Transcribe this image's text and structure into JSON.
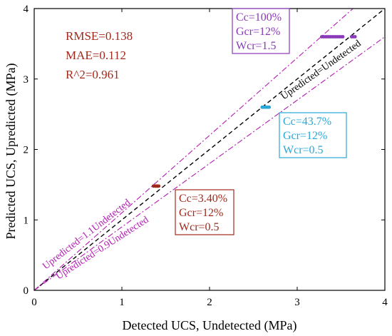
{
  "chart_data": {
    "type": "scatter",
    "xlabel": "Detected UCS, Undetected (MPa)",
    "ylabel": "Predicted UCS, Upredicted (MPa)",
    "xlim": [
      0,
      4
    ],
    "ylim": [
      0,
      4
    ],
    "xticks": [
      "0",
      "1",
      "2",
      "3",
      "4"
    ],
    "yticks": [
      "0",
      "1",
      "2",
      "3",
      "4"
    ],
    "grid": false,
    "metrics": [
      "RMSE=0.138",
      "MAE=0.112",
      "R^2=0.961"
    ],
    "metrics_color": "#a0291c",
    "reference_lines": [
      {
        "label": "Upredicted=Undetected",
        "slope": 1.0,
        "color": "#000000",
        "style": "dashed"
      },
      {
        "label": "Upredicted=1.1Undetected",
        "slope": 1.1,
        "color": "#b21cb2",
        "style": "dash-dot"
      },
      {
        "label": "Upredicted=0.9Undetected",
        "slope": 0.9,
        "color": "#b21cb2",
        "style": "dash-dot"
      }
    ],
    "series": [
      {
        "color": "#a0291c",
        "x": [
          1.36,
          1.38,
          1.39,
          1.4,
          1.41,
          1.42
        ],
        "y": [
          1.48,
          1.48,
          1.48,
          1.48,
          1.48,
          1.48
        ],
        "annotation": [
          "Cc=3.40%",
          "Gcr=12%",
          "Wcr=0.5"
        ]
      },
      {
        "color": "#2aa7d6",
        "x": [
          2.6,
          2.62,
          2.64,
          2.66,
          2.68
        ],
        "y": [
          2.6,
          2.6,
          2.6,
          2.6,
          2.6
        ],
        "annotation": [
          "Cc=43.7%",
          "Gcr=12%",
          "Wcr=0.5"
        ]
      },
      {
        "color": "#8a3ab9",
        "x": [
          3.28,
          3.3,
          3.32,
          3.34,
          3.36,
          3.38,
          3.4,
          3.42,
          3.44,
          3.46,
          3.48,
          3.5,
          3.52,
          3.62,
          3.64,
          3.66
        ],
        "y": [
          3.6,
          3.6,
          3.6,
          3.6,
          3.6,
          3.6,
          3.6,
          3.6,
          3.6,
          3.6,
          3.6,
          3.6,
          3.6,
          3.6,
          3.6,
          3.6
        ],
        "annotation": [
          "Cc=100%",
          "Gcr=12%",
          "Wcr=1.5"
        ]
      }
    ]
  }
}
